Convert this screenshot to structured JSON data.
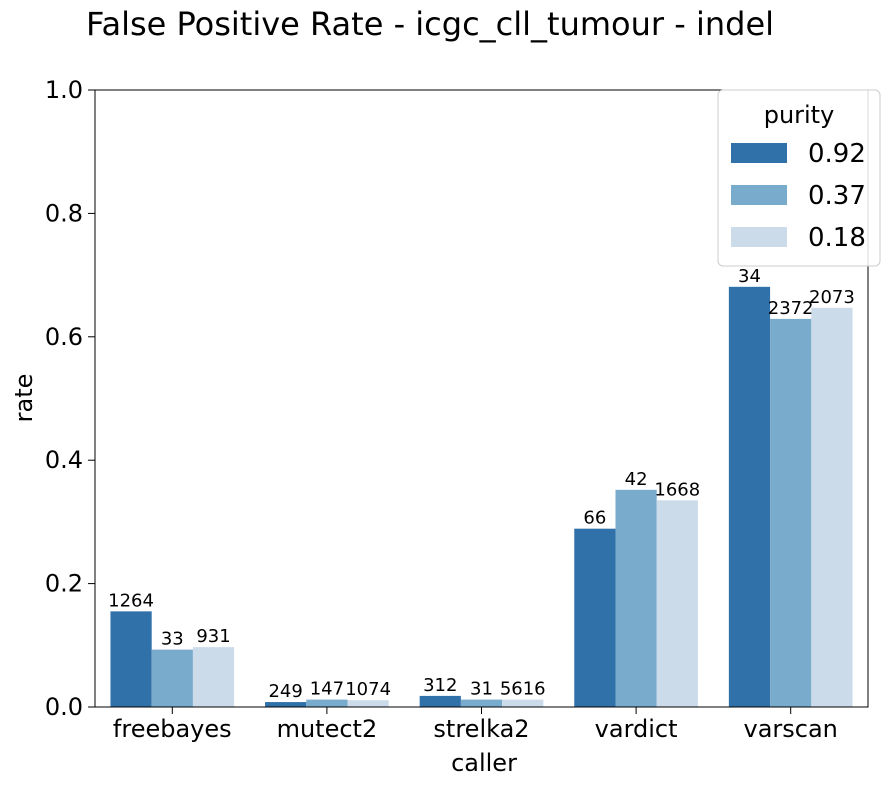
{
  "chart_data": {
    "type": "bar",
    "title": "False Positive Rate - icgc_cll_tumour - indel",
    "xlabel": "caller",
    "ylabel": "rate",
    "ylim": [
      0,
      1.0
    ],
    "yticks": [
      "0.0",
      "0.2",
      "0.4",
      "0.6",
      "0.8",
      "1.0"
    ],
    "grid": false,
    "categories": [
      "freebayes",
      "mutect2",
      "strelka2",
      "vardict",
      "varscan"
    ],
    "legend": {
      "title": "purity",
      "placement": "top-right"
    },
    "series": [
      {
        "name": "0.92",
        "color": "#3171a9",
        "values": [
          0.155,
          0.008,
          0.018,
          0.289,
          0.681
        ],
        "labels": [
          "1264",
          "249",
          "312",
          "66",
          "34"
        ]
      },
      {
        "name": "0.37",
        "color": "#79abcc",
        "values": [
          0.093,
          0.012,
          0.012,
          0.352,
          0.629
        ],
        "labels": [
          "33",
          "147",
          "31",
          "42",
          "2372"
        ]
      },
      {
        "name": "0.18",
        "color": "#cbdbea",
        "values": [
          0.097,
          0.011,
          0.012,
          0.335,
          0.647
        ],
        "labels": [
          "931",
          "1074",
          "5616",
          "1668",
          "2073"
        ]
      }
    ]
  }
}
